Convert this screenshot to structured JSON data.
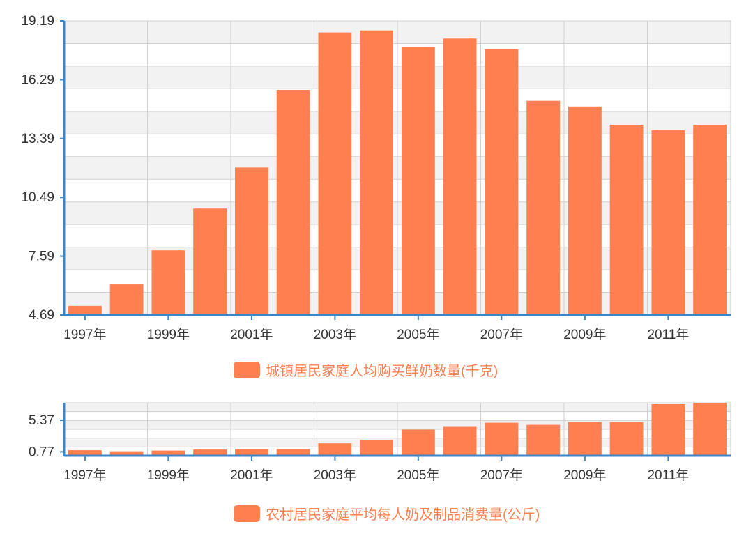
{
  "colors": {
    "bar": "#ff7f50",
    "axis": "#3a86c8",
    "grid": "#d0d0d0",
    "band": "#f2f2f2",
    "text": "#333333"
  },
  "chart_data": [
    {
      "type": "bar",
      "grid": true,
      "legend": "bottom-center",
      "series": [
        {
          "name": "城镇居民家庭人均购买鲜奶数量(千克)",
          "values": [
            5.14,
            6.2,
            7.88,
            9.94,
            11.96,
            15.79,
            18.62,
            18.72,
            17.92,
            18.32,
            17.8,
            15.25,
            14.97,
            14.07,
            13.8,
            14.07
          ]
        }
      ],
      "categories": [
        "1997年",
        "1998年",
        "1999年",
        "2000年",
        "2001年",
        "2002年",
        "2003年",
        "2004年",
        "2005年",
        "2006年",
        "2007年",
        "2008年",
        "2009年",
        "2010年",
        "2011年",
        "2012年"
      ],
      "x_tick_labels": [
        "1997年",
        "1999年",
        "2001年",
        "2003年",
        "2005年",
        "2007年",
        "2009年",
        "2011年"
      ],
      "y_ticks": [
        "4.69",
        "7.59",
        "10.49",
        "13.39",
        "16.29",
        "19.19"
      ],
      "ylim": [
        4.69,
        19.19
      ]
    },
    {
      "type": "bar",
      "grid": true,
      "legend": "bottom-center",
      "series": [
        {
          "name": "农村居民家庭平均每人奶及制品消费量(公斤)",
          "values": [
            1.0,
            0.85,
            0.95,
            1.1,
            1.2,
            1.2,
            2.0,
            2.5,
            4.0,
            4.4,
            5.0,
            4.7,
            5.1,
            5.1,
            7.7,
            7.9
          ]
        }
      ],
      "categories": [
        "1997年",
        "1998年",
        "1999年",
        "2000年",
        "2001年",
        "2002年",
        "2003年",
        "2004年",
        "2005年",
        "2006年",
        "2007年",
        "2008年",
        "2009年",
        "2010年",
        "2011年",
        "2012年"
      ],
      "x_tick_labels": [
        "1997年",
        "1999年",
        "2001年",
        "2003年",
        "2005年",
        "2007年",
        "2009年",
        "2011年"
      ],
      "y_ticks": [
        "0.77",
        "5.37"
      ],
      "ylim": [
        0.2,
        7.9
      ]
    }
  ]
}
